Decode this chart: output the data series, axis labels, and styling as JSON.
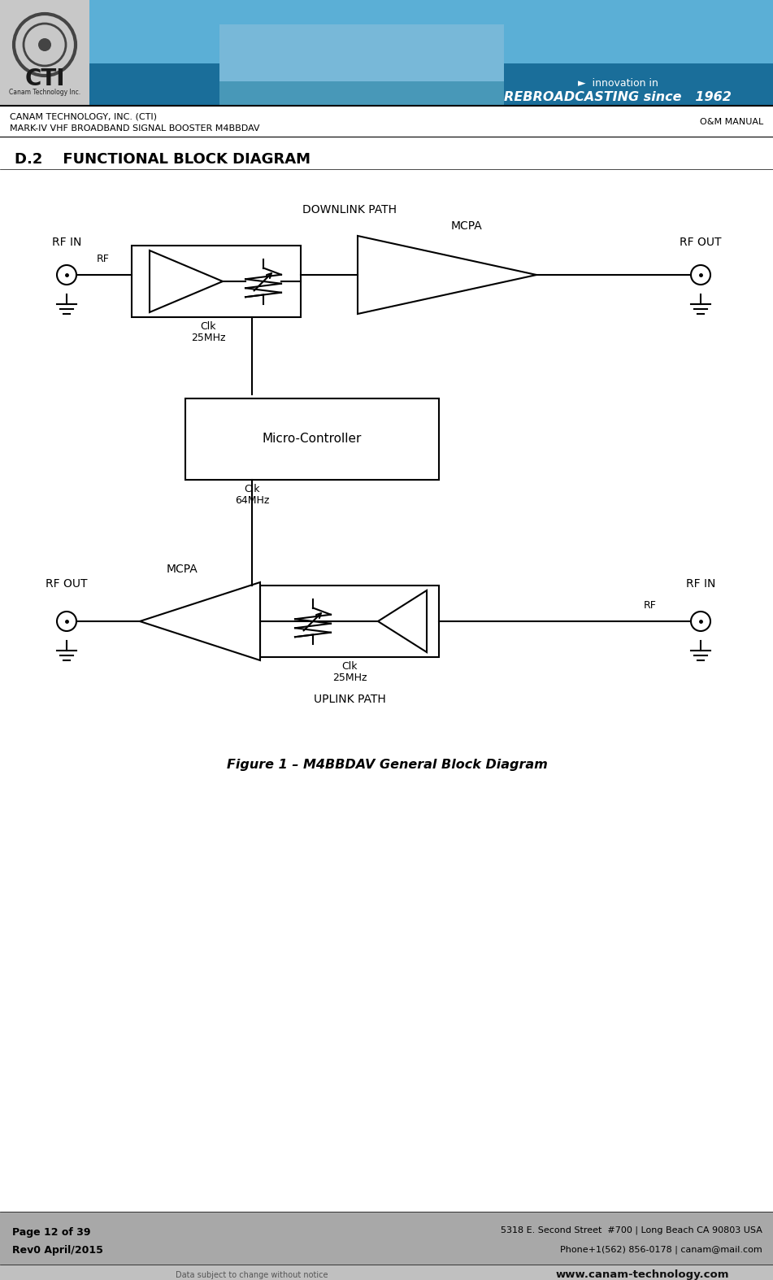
{
  "bg_color": "#ffffff",
  "header_line1": "CANAM TECHNOLOGY, INC. (CTI)",
  "header_line2": "MARK-IV VHF BROADBAND SIGNAL BOOSTER M4BBDAV",
  "header_right": "O&M MANUAL",
  "section_title": "D.2    FUNCTIONAL BLOCK DIAGRAM",
  "downlink_label": "DOWNLINK PATH",
  "uplink_label": "UPLINK PATH",
  "mcpa_top_label": "MCPA",
  "mcpa_bot_label": "MCPA",
  "micro_label": "Micro-Controller",
  "clk25_top": "Clk\n25MHz",
  "clk64": "Clk\n64MHz",
  "clk25_bot": "Clk\n25MHz",
  "rf_in_top": "RF IN",
  "rf_out_top": "RF OUT",
  "rf_out_bot": "RF OUT",
  "rf_in_bot": "RF IN",
  "rf_top": "RF",
  "rf_bot": "RF",
  "figure_caption": "Figure 1 – M4BBDAV General Block Diagram",
  "footer_left1": "Page 12 of 39",
  "footer_left2": "Rev0 April/2015",
  "footer_center": "Data subject to change without notice",
  "footer_addr": "5318 E. Second Street  #700 | Long Beach CA 90803 USA",
  "footer_phone": "Phone+1(562) 856-0178 | canam@mail.com",
  "footer_web": "www.canam-technology.com",
  "line_color": "#000000",
  "banner_blue_light": "#5bafd6",
  "banner_blue_dark": "#1a6e9a",
  "banner_grey": "#c8c8c8",
  "footer_grey": "#a8a8a8",
  "footer_strip_grey": "#c0c0c0"
}
